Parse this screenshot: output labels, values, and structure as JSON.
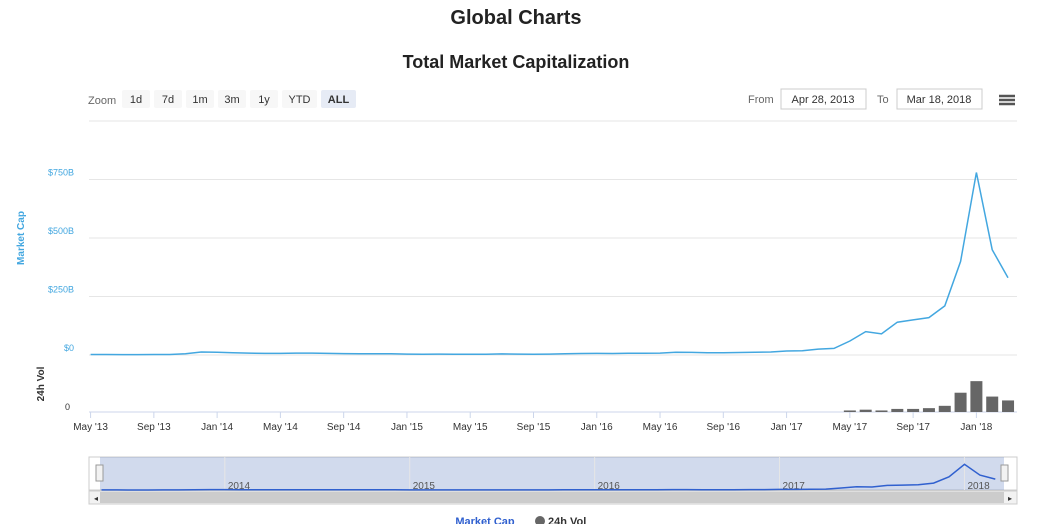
{
  "page_title": "Global Charts",
  "chart_data": {
    "type": "line",
    "title": "Total Market Capitalization",
    "zoom_label": "Zoom",
    "zoom_buttons": [
      "1d",
      "7d",
      "1m",
      "3m",
      "1y",
      "YTD",
      "ALL"
    ],
    "active_zoom": 6,
    "from_label": "From",
    "from": "Apr 28, 2013",
    "to_label": "To",
    "to": "Mar 18, 2018",
    "x": [
      "2013-05",
      "2013-06",
      "2013-07",
      "2013-08",
      "2013-09",
      "2013-10",
      "2013-11",
      "2013-12",
      "2014-01",
      "2014-02",
      "2014-03",
      "2014-04",
      "2014-05",
      "2014-06",
      "2014-07",
      "2014-08",
      "2014-09",
      "2014-10",
      "2014-11",
      "2014-12",
      "2015-01",
      "2015-02",
      "2015-03",
      "2015-04",
      "2015-05",
      "2015-06",
      "2015-07",
      "2015-08",
      "2015-09",
      "2015-10",
      "2015-11",
      "2015-12",
      "2016-01",
      "2016-02",
      "2016-03",
      "2016-04",
      "2016-05",
      "2016-06",
      "2016-07",
      "2016-08",
      "2016-09",
      "2016-10",
      "2016-11",
      "2016-12",
      "2017-01",
      "2017-02",
      "2017-03",
      "2017-04",
      "2017-05",
      "2017-06",
      "2017-07",
      "2017-08",
      "2017-09",
      "2017-10",
      "2017-11",
      "2017-12",
      "2018-01",
      "2018-02",
      "2018-03"
    ],
    "xlim": [
      "2013-04-28",
      "2018-03-18"
    ],
    "xticks": [
      {
        "value": "2013-05",
        "label": "May '13"
      },
      {
        "value": "2013-09",
        "label": "Sep '13"
      },
      {
        "value": "2014-01",
        "label": "Jan '14"
      },
      {
        "value": "2014-05",
        "label": "May '14"
      },
      {
        "value": "2014-09",
        "label": "Sep '14"
      },
      {
        "value": "2015-01",
        "label": "Jan '15"
      },
      {
        "value": "2015-05",
        "label": "May '15"
      },
      {
        "value": "2015-09",
        "label": "Sep '15"
      },
      {
        "value": "2016-01",
        "label": "Jan '16"
      },
      {
        "value": "2016-05",
        "label": "May '16"
      },
      {
        "value": "2016-09",
        "label": "Sep '16"
      },
      {
        "value": "2017-01",
        "label": "Jan '17"
      },
      {
        "value": "2017-05",
        "label": "May '17"
      },
      {
        "value": "2017-09",
        "label": "Sep '17"
      },
      {
        "value": "2018-01",
        "label": "Jan '18"
      }
    ],
    "ylabel": "Market Cap",
    "ylim": [
      0,
      1000
    ],
    "yticks": [
      {
        "value": 0,
        "label": "$0"
      },
      {
        "value": 250,
        "label": "$250B"
      },
      {
        "value": 500,
        "label": "$500B"
      },
      {
        "value": 750,
        "label": "$750B"
      }
    ],
    "y2label": "24h Vol",
    "y2lim": [
      0,
      70
    ],
    "y2ticks": [
      0
    ],
    "series": [
      {
        "name": "Market Cap",
        "color": "#43a7e0",
        "values": [
          2,
          2,
          1.5,
          1.5,
          2,
          2,
          5,
          13,
          12,
          10,
          8,
          7,
          7,
          8,
          8,
          7,
          6,
          5,
          5,
          5,
          4,
          3.5,
          4,
          3.5,
          3.5,
          3.5,
          4.5,
          4,
          3.5,
          4,
          5,
          6.5,
          7,
          6.5,
          7.5,
          7.5,
          8,
          12,
          11,
          10,
          10,
          10.5,
          12,
          13,
          17,
          18,
          25,
          28,
          60,
          100,
          90,
          140,
          150,
          160,
          210,
          400,
          780,
          450,
          330
        ]
      },
      {
        "name": "24h Vol",
        "color": "#666666",
        "type": "column",
        "axis": "y2",
        "values": [
          null,
          null,
          null,
          null,
          null,
          null,
          null,
          null,
          null,
          null,
          null,
          null,
          null,
          null,
          null,
          null,
          null,
          null,
          null,
          null,
          null,
          null,
          null,
          null,
          null,
          null,
          null,
          null,
          null,
          null,
          null,
          null,
          null,
          null,
          null,
          null,
          null,
          null,
          null,
          null,
          null,
          null,
          null,
          null,
          null,
          null,
          null,
          null,
          2,
          3,
          2,
          4,
          4,
          5,
          8,
          25,
          40,
          20,
          15
        ]
      }
    ],
    "navigator": {
      "xticks": [
        {
          "value": "2014-01",
          "label": "2014"
        },
        {
          "value": "2015-01",
          "label": "2015"
        },
        {
          "value": "2016-01",
          "label": "2016"
        },
        {
          "value": "2017-01",
          "label": "2017"
        },
        {
          "value": "2018-01",
          "label": "2018"
        }
      ]
    },
    "legend": "bottom"
  }
}
